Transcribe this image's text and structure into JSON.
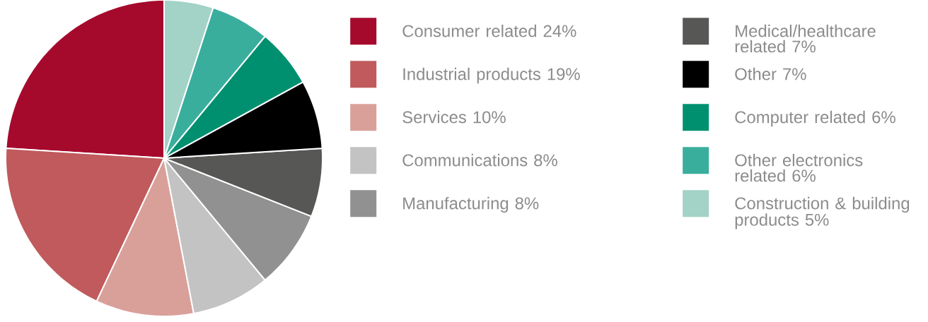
{
  "chart_data": {
    "type": "pie",
    "categories": [
      "Consumer related 24%",
      "Industrial products 19%",
      "Services 10%",
      "Communications 8%",
      "Manufacturing 8%",
      "Medical/healthcare related 7%",
      "Other 7%",
      "Computer related 6%",
      "Other electronics related 6%",
      "Construction & building products 5%"
    ],
    "values": [
      24,
      19,
      10,
      8,
      8,
      7,
      7,
      6,
      6,
      5
    ],
    "colors": [
      "#a50a2d",
      "#c05a5c",
      "#d9a09a",
      "#c3c3c3",
      "#919191",
      "#575755",
      "#000000",
      "#009070",
      "#3aae9c",
      "#a3d2c7"
    ],
    "legend": "right"
  }
}
